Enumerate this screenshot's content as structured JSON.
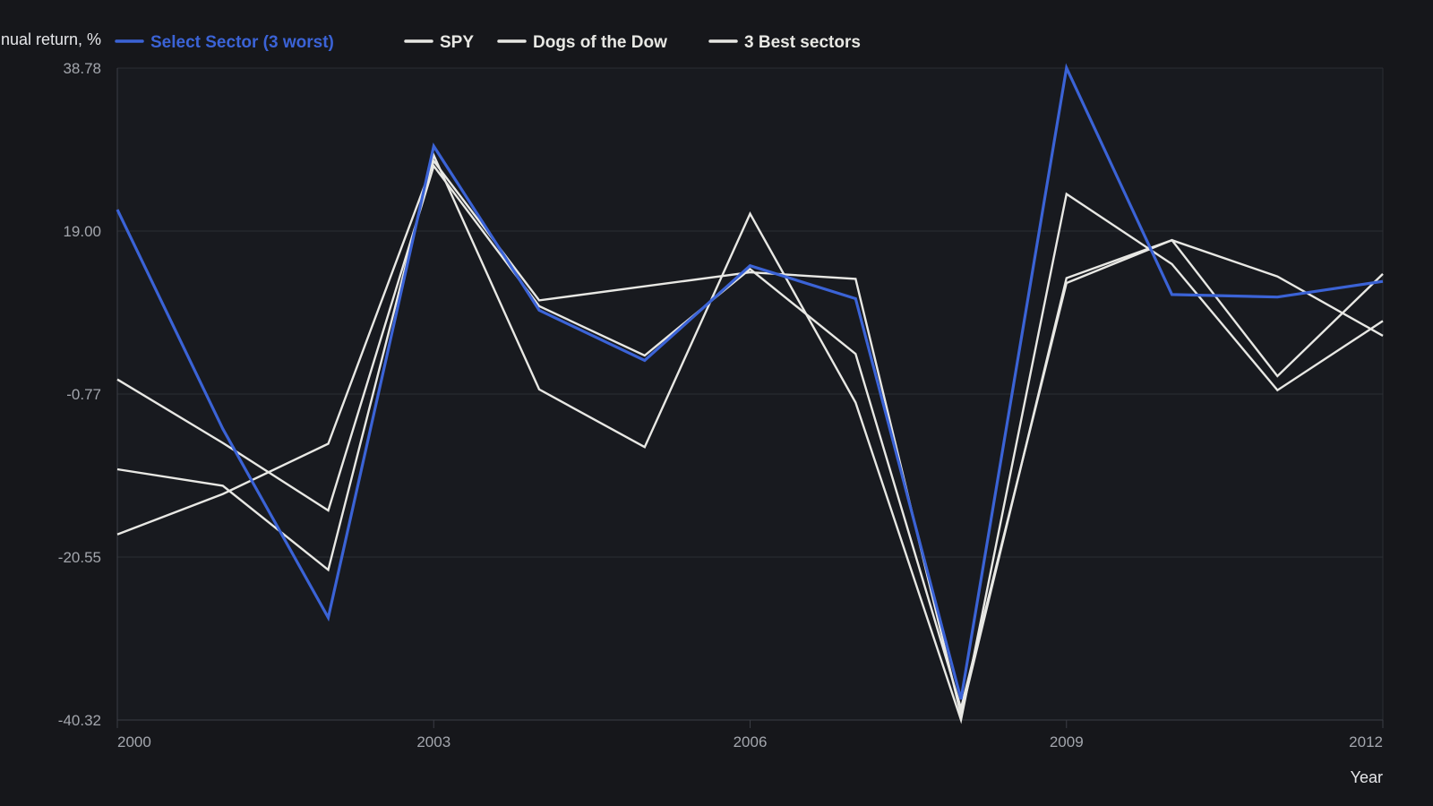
{
  "chart_data": {
    "type": "line",
    "title": "",
    "xlabel": "Year",
    "ylabel": "Annual return, %",
    "x": [
      2000,
      2001,
      2002,
      2003,
      2004,
      2005,
      2006,
      2007,
      2008,
      2009,
      2010,
      2011,
      2012
    ],
    "x_ticks": [
      "2000",
      "2003",
      "2006",
      "2009",
      "2012"
    ],
    "x_tick_values": [
      2000,
      2003,
      2006,
      2009,
      2012
    ],
    "y_ticks": [
      "38.78",
      "19.00",
      "-0.77",
      "-20.55",
      "-40.32"
    ],
    "y_tick_values": [
      38.78,
      19.0,
      -0.77,
      -20.55,
      -40.32
    ],
    "xlim": [
      2000,
      2012
    ],
    "ylim": [
      -40.32,
      38.78
    ],
    "grid": true,
    "legend_position": "top-left",
    "series": [
      {
        "name": "Select Sector (3 worst)",
        "color": "#3b63d6",
        "values": [
          21.6,
          -5.0,
          -27.9,
          29.3,
          9.4,
          3.3,
          14.8,
          10.8,
          -37.8,
          38.8,
          11.3,
          11.0,
          12.9
        ]
      },
      {
        "name": "SPY",
        "color": "#e8e8e4",
        "values": [
          -9.9,
          -11.9,
          -22.1,
          28.2,
          -0.2,
          -7.2,
          21.1,
          -1.8,
          -40.3,
          23.5,
          15.0,
          -0.3,
          8.1
        ]
      },
      {
        "name": "Dogs of the Dow",
        "color": "#e8e8e4",
        "values": [
          1.0,
          -6.7,
          -14.9,
          26.9,
          9.9,
          3.9,
          14.4,
          4.1,
          -38.9,
          12.7,
          17.9,
          13.5,
          6.3
        ]
      },
      {
        "name": "3 Best sectors",
        "color": "#e8e8e4",
        "values": [
          -17.8,
          -12.9,
          -6.8,
          27.5,
          10.6,
          12.3,
          14.0,
          13.2,
          -39.7,
          13.3,
          17.9,
          1.4,
          13.8
        ]
      }
    ]
  }
}
